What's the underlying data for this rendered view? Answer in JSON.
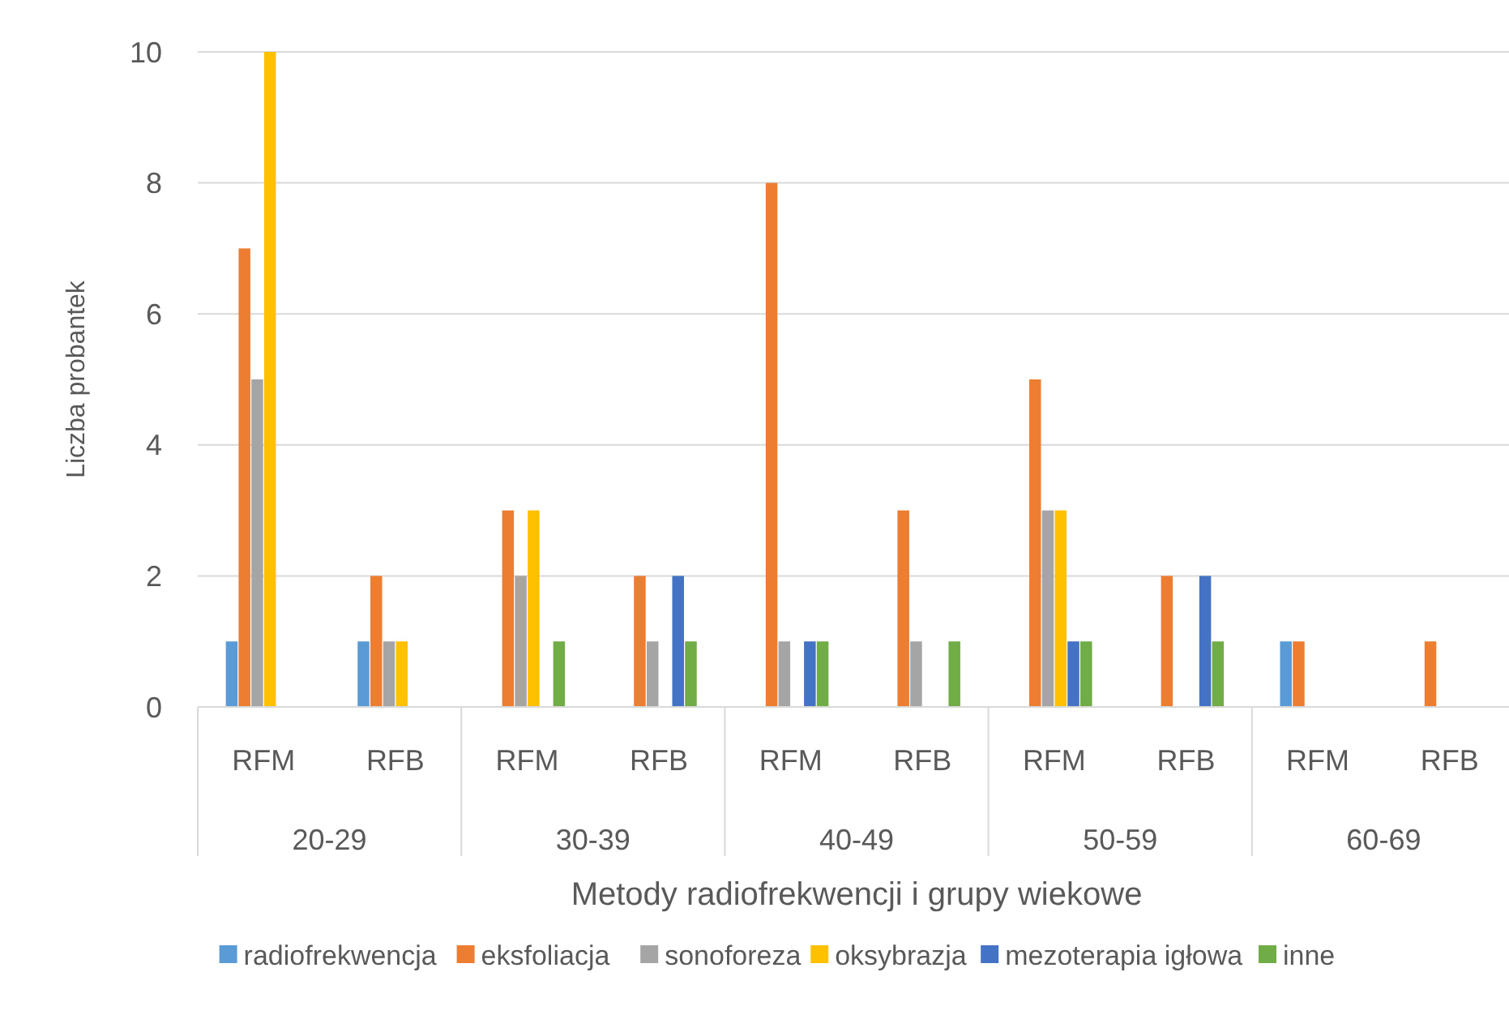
{
  "chart_data": {
    "type": "bar",
    "xlabel": "Metody radiofrekwencji i grupy wiekowe",
    "ylabel": "Liczba probantek",
    "categories": [
      "RFM",
      "RFB",
      "RFM",
      "RFB",
      "RFM",
      "RFB",
      "RFM",
      "RFB",
      "RFM",
      "RFB"
    ],
    "annotations": [
      "20-29",
      "30-39",
      "40-49",
      "50-59",
      "60-69"
    ],
    "series": [
      {
        "name": "radiofrekwencja",
        "color": "#5b9bd5",
        "values": [
          1,
          1,
          0,
          0,
          0,
          0,
          0,
          0,
          1,
          0
        ]
      },
      {
        "name": "eksfoliacja",
        "color": "#ed7d31",
        "values": [
          7,
          2,
          3,
          2,
          8,
          3,
          5,
          2,
          1,
          1
        ]
      },
      {
        "name": "sonoforeza",
        "color": "#a5a5a5",
        "values": [
          5,
          1,
          2,
          1,
          1,
          1,
          3,
          0,
          0,
          0
        ]
      },
      {
        "name": "oksybrazja",
        "color": "#ffc000",
        "values": [
          10,
          1,
          3,
          0,
          0,
          0,
          3,
          0,
          0,
          0
        ]
      },
      {
        "name": "mezoterapia igłowa",
        "color": "#4472c4",
        "values": [
          0,
          0,
          0,
          2,
          1,
          0,
          1,
          2,
          0,
          0
        ]
      },
      {
        "name": "inne",
        "color": "#70ad47",
        "values": [
          0,
          0,
          1,
          1,
          1,
          1,
          1,
          1,
          0,
          0
        ]
      }
    ],
    "ylim": [
      0,
      10
    ],
    "yticks": [
      0,
      2,
      4,
      6,
      8,
      10
    ],
    "grid": "y",
    "legend": "bottom"
  }
}
